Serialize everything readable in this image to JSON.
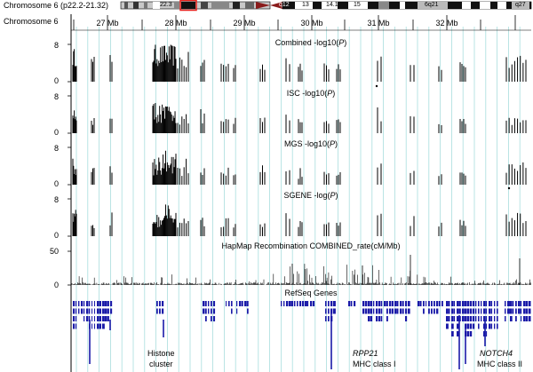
{
  "header": {
    "chrom_label": "Chromosome 6 (p22.2-21.32)",
    "track_label": "Chromosome 6"
  },
  "ideogram": {
    "bands": [
      "22.3",
      "13",
      "14.1",
      "15",
      "6q21",
      "q27",
      "q12"
    ],
    "highlight_color": "#e8231f"
  },
  "axis": {
    "ticks": [
      "27 Mb",
      "28 Mb",
      "29 Mb",
      "30 Mb",
      "31 Mb",
      "32 Mb"
    ]
  },
  "tracks": [
    {
      "title": "Combined -log10(P)",
      "title_main": "Combined -log10(",
      "title_var": "P",
      "title_end": ")",
      "ymax": "8",
      "ymin": "0"
    },
    {
      "title": "ISC -log10(P)",
      "title_main": "ISC -log10(",
      "title_var": "P",
      "title_end": ")",
      "ymax": "8",
      "ymin": "0"
    },
    {
      "title": "MGS -log10(P)",
      "title_main": "MGS -log10(",
      "title_var": "P",
      "title_end": ")",
      "ymax": "8",
      "ymin": "0"
    },
    {
      "title": "SGENE -log(P)",
      "title_main": "SGENE -log(",
      "title_var": "P",
      "title_end": ")",
      "ymax": "8",
      "ymin": "0"
    }
  ],
  "recomb": {
    "title": "HapMap Recombination COMBINED_rate(cM/Mb)",
    "ymax": "50",
    "ymin": "0"
  },
  "genes": {
    "title": "RefSeq Genes",
    "gene_color": "#1a1aa8",
    "annotations": [
      {
        "line1": "Histone",
        "line2": "cluster",
        "italic": false
      },
      {
        "line1": "RPP21",
        "line2": "MHC class I",
        "italic": true
      },
      {
        "line1": "NOTCH4",
        "line2": "MHC class II",
        "italic": true
      }
    ]
  },
  "colors": {
    "grid": "#a8dede",
    "bars": "#000000"
  }
}
